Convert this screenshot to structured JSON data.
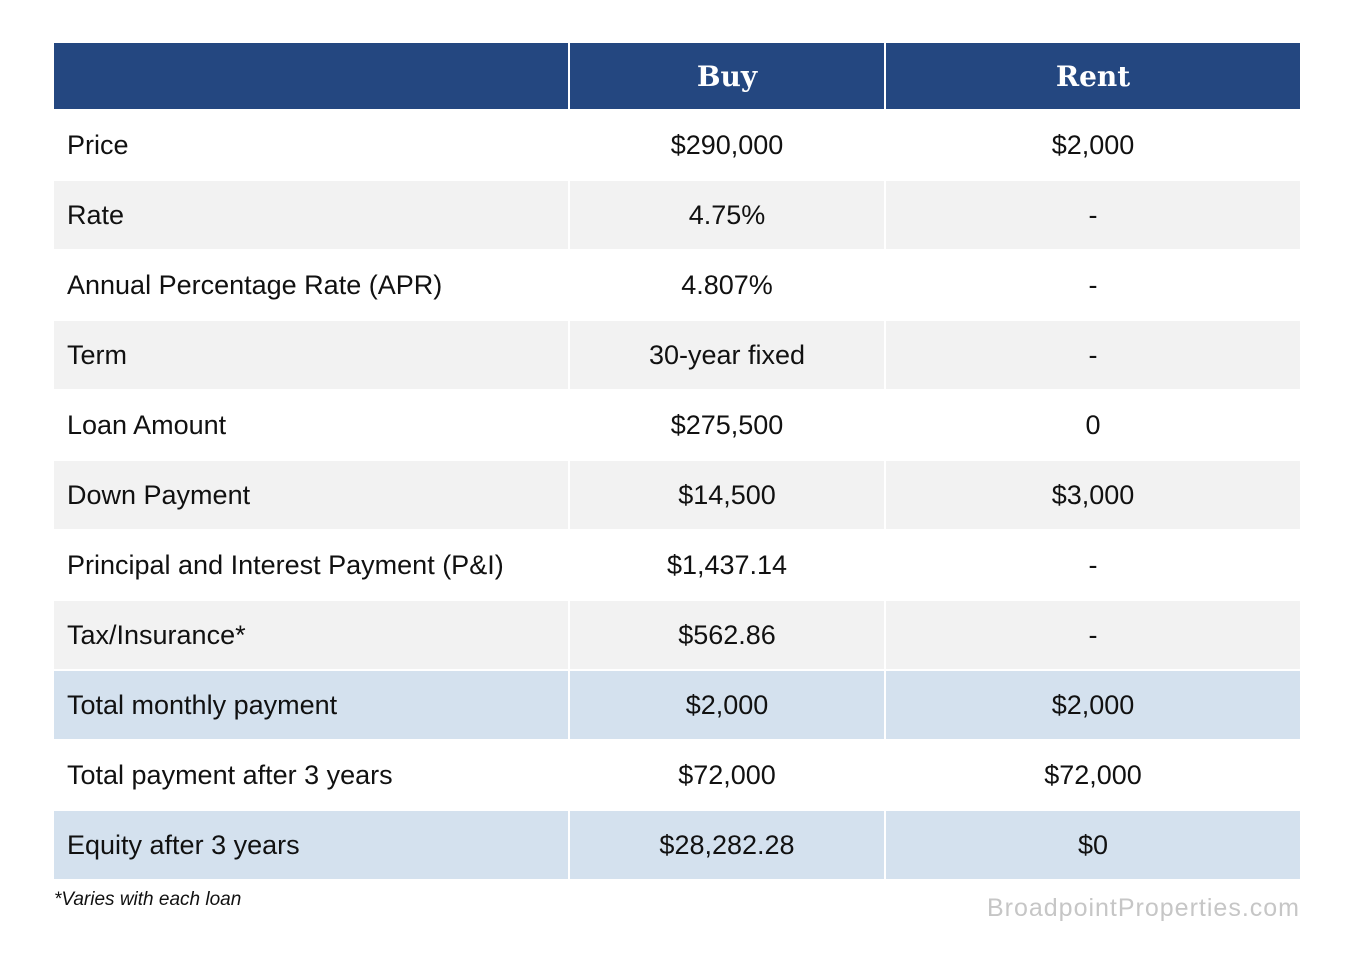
{
  "table": {
    "headers": [
      "",
      "Buy",
      "Rent"
    ],
    "rows": [
      {
        "label": "Price",
        "buy": "$290,000",
        "rent": "$2,000"
      },
      {
        "label": "Rate",
        "buy": "4.75%",
        "rent": "-"
      },
      {
        "label": "Annual Percentage Rate (APR)",
        "buy": "4.807%",
        "rent": "-"
      },
      {
        "label": "Term",
        "buy": "30-year fixed",
        "rent": "-"
      },
      {
        "label": "Loan Amount",
        "buy": "$275,500",
        "rent": "0"
      },
      {
        "label": "Down Payment",
        "buy": "$14,500",
        "rent": "$3,000"
      },
      {
        "label": "Principal and Interest Payment (P&I)",
        "buy": "$1,437.14",
        "rent": "-"
      },
      {
        "label": "Tax/Insurance*",
        "buy": "$562.86",
        "rent": "-"
      },
      {
        "label": "Total monthly payment",
        "buy": "$2,000",
        "rent": "$2,000"
      },
      {
        "label": "Total payment after 3 years",
        "buy": "$72,000",
        "rent": "$72,000"
      },
      {
        "label": "Equity after 3 years",
        "buy": "$28,282.28",
        "rent": "$0"
      }
    ]
  },
  "footnote": "*Varies with each loan",
  "watermark": "BroadpointProperties.com",
  "colors": {
    "header_bg": "#244780",
    "row_gray": "#f2f2f2",
    "row_highlight": "#d4e1ee",
    "watermark": "#c6c6c6"
  }
}
